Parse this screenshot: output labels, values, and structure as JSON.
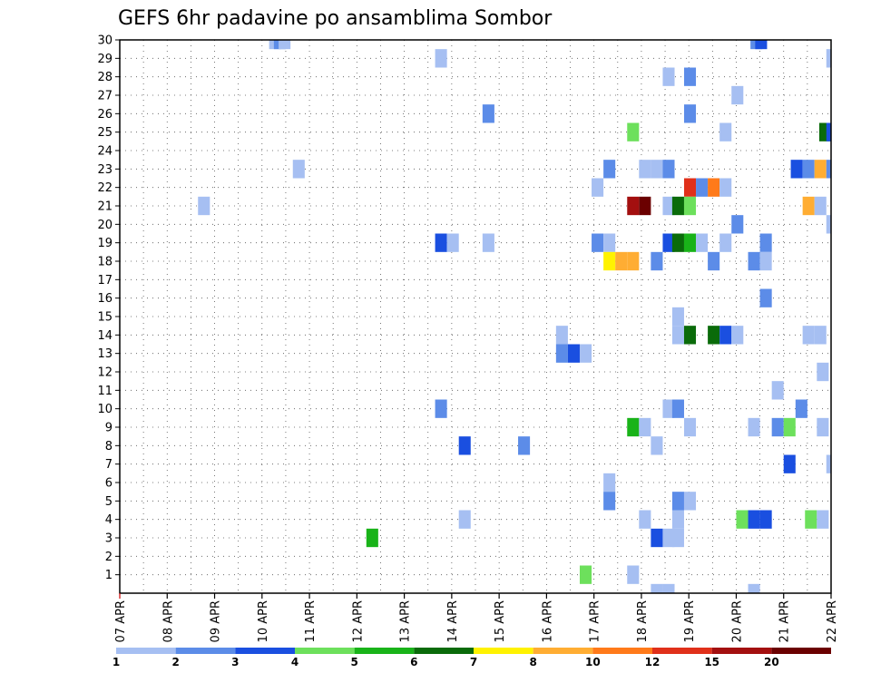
{
  "chart_data": {
    "type": "heatmap",
    "title": "GEFS 6hr padavine po ansamblima Sombor",
    "x_ticks": [
      "07 APR",
      "08 APR",
      "09 APR",
      "10 APR",
      "11 APR",
      "12 APR",
      "13 APR",
      "14 APR",
      "15 APR",
      "16 APR",
      "17 APR",
      "18 APR",
      "19 APR",
      "20 APR",
      "21 APR",
      "22 APR"
    ],
    "x_range": [
      0,
      60
    ],
    "y_ticks": [
      1,
      2,
      3,
      4,
      5,
      6,
      7,
      8,
      9,
      10,
      11,
      12,
      13,
      14,
      15,
      16,
      17,
      18,
      19,
      20,
      21,
      22,
      23,
      24,
      25,
      26,
      27,
      28,
      29,
      30
    ],
    "y_range": [
      0,
      30
    ],
    "grid": true,
    "legend": {
      "placement": "bottom",
      "labels": [
        "1",
        "2",
        "3",
        "4",
        "5",
        "6",
        "7",
        "8",
        "10",
        "12",
        "15",
        "20"
      ],
      "colors": [
        "#a6bff2",
        "#5c8ce8",
        "#1a4fe0",
        "#6de05c",
        "#19b319",
        "#0a6b0a",
        "#fff200",
        "#ffad33",
        "#ff7a1a",
        "#e0301a",
        "#a30f0f",
        "#6b0000"
      ]
    },
    "cells": [
      {
        "m": 30,
        "s": 12.6,
        "c": 1
      },
      {
        "m": 30,
        "s": 13.0,
        "c": 2
      },
      {
        "m": 30,
        "s": 13.4,
        "c": 1
      },
      {
        "m": 30,
        "s": 53.2,
        "c": 2
      },
      {
        "m": 30,
        "s": 53.6,
        "c": 3
      },
      {
        "m": 29,
        "s": 26.6,
        "c": 1
      },
      {
        "m": 29,
        "s": 59.6,
        "c": 1
      },
      {
        "m": 28,
        "s": 45.8,
        "c": 1
      },
      {
        "m": 28,
        "s": 47.6,
        "c": 2
      },
      {
        "m": 27,
        "s": 51.6,
        "c": 1
      },
      {
        "m": 26,
        "s": 30.6,
        "c": 2
      },
      {
        "m": 26,
        "s": 47.6,
        "c": 2
      },
      {
        "m": 25,
        "s": 42.8,
        "c": 4
      },
      {
        "m": 25,
        "s": 50.6,
        "c": 1
      },
      {
        "m": 25,
        "s": 59.0,
        "c": 6
      },
      {
        "m": 25,
        "s": 59.6,
        "c": 3
      },
      {
        "m": 23,
        "s": 14.6,
        "c": 1
      },
      {
        "m": 23,
        "s": 40.8,
        "c": 2
      },
      {
        "m": 23,
        "s": 43.8,
        "c": 1
      },
      {
        "m": 23,
        "s": 44.8,
        "c": 1
      },
      {
        "m": 23,
        "s": 45.8,
        "c": 2
      },
      {
        "m": 23,
        "s": 56.6,
        "c": 3
      },
      {
        "m": 23,
        "s": 57.6,
        "c": 2
      },
      {
        "m": 23,
        "s": 58.6,
        "c": 8
      },
      {
        "m": 23,
        "s": 59.6,
        "c": 2
      },
      {
        "m": 22,
        "s": 39.8,
        "c": 1
      },
      {
        "m": 22,
        "s": 47.6,
        "c": 10
      },
      {
        "m": 22,
        "s": 48.6,
        "c": 2
      },
      {
        "m": 22,
        "s": 49.6,
        "c": 9
      },
      {
        "m": 22,
        "s": 50.6,
        "c": 1
      },
      {
        "m": 21,
        "s": 6.6,
        "c": 1
      },
      {
        "m": 21,
        "s": 42.8,
        "c": 11
      },
      {
        "m": 21,
        "s": 43.8,
        "c": 12
      },
      {
        "m": 21,
        "s": 45.8,
        "c": 1
      },
      {
        "m": 21,
        "s": 46.6,
        "c": 6
      },
      {
        "m": 21,
        "s": 47.6,
        "c": 4
      },
      {
        "m": 21,
        "s": 57.6,
        "c": 8
      },
      {
        "m": 21,
        "s": 58.6,
        "c": 1
      },
      {
        "m": 20,
        "s": 51.6,
        "c": 2
      },
      {
        "m": 20,
        "s": 59.6,
        "c": 1
      },
      {
        "m": 19,
        "s": 26.6,
        "c": 3
      },
      {
        "m": 19,
        "s": 27.6,
        "c": 1
      },
      {
        "m": 19,
        "s": 30.6,
        "c": 1
      },
      {
        "m": 19,
        "s": 39.8,
        "c": 2
      },
      {
        "m": 19,
        "s": 40.8,
        "c": 1
      },
      {
        "m": 19,
        "s": 45.8,
        "c": 3
      },
      {
        "m": 19,
        "s": 46.6,
        "c": 6
      },
      {
        "m": 19,
        "s": 47.6,
        "c": 5
      },
      {
        "m": 19,
        "s": 48.6,
        "c": 1
      },
      {
        "m": 19,
        "s": 50.6,
        "c": 1
      },
      {
        "m": 19,
        "s": 54.0,
        "c": 2
      },
      {
        "m": 18,
        "s": 40.8,
        "c": 7
      },
      {
        "m": 18,
        "s": 41.8,
        "c": 8
      },
      {
        "m": 18,
        "s": 42.8,
        "c": 8
      },
      {
        "m": 18,
        "s": 44.8,
        "c": 2
      },
      {
        "m": 18,
        "s": 49.6,
        "c": 2
      },
      {
        "m": 18,
        "s": 53.0,
        "c": 2
      },
      {
        "m": 18,
        "s": 54.0,
        "c": 1
      },
      {
        "m": 16,
        "s": 54.0,
        "c": 2
      },
      {
        "m": 15,
        "s": 46.6,
        "c": 1
      },
      {
        "m": 14,
        "s": 46.6,
        "c": 1
      },
      {
        "m": 14,
        "s": 47.6,
        "c": 6
      },
      {
        "m": 14,
        "s": 49.6,
        "c": 6
      },
      {
        "m": 14,
        "s": 50.6,
        "c": 3
      },
      {
        "m": 14,
        "s": 51.6,
        "c": 1
      },
      {
        "m": 14,
        "s": 57.6,
        "c": 1
      },
      {
        "m": 14,
        "s": 58.6,
        "c": 1
      },
      {
        "m": 14,
        "s": 36.8,
        "c": 1
      },
      {
        "m": 13,
        "s": 36.8,
        "c": 2
      },
      {
        "m": 13,
        "s": 37.8,
        "c": 3
      },
      {
        "m": 13,
        "s": 38.8,
        "c": 1
      },
      {
        "m": 12,
        "s": 58.8,
        "c": 1
      },
      {
        "m": 11,
        "s": 55.0,
        "c": 1
      },
      {
        "m": 10,
        "s": 26.6,
        "c": 2
      },
      {
        "m": 10,
        "s": 45.8,
        "c": 1
      },
      {
        "m": 10,
        "s": 46.6,
        "c": 2
      },
      {
        "m": 10,
        "s": 57.0,
        "c": 2
      },
      {
        "m": 9,
        "s": 42.8,
        "c": 5
      },
      {
        "m": 9,
        "s": 43.8,
        "c": 1
      },
      {
        "m": 9,
        "s": 47.6,
        "c": 1
      },
      {
        "m": 9,
        "s": 53.0,
        "c": 1
      },
      {
        "m": 9,
        "s": 55.0,
        "c": 2
      },
      {
        "m": 9,
        "s": 56.0,
        "c": 4
      },
      {
        "m": 9,
        "s": 58.8,
        "c": 1
      },
      {
        "m": 8,
        "s": 28.6,
        "c": 3
      },
      {
        "m": 8,
        "s": 33.6,
        "c": 2
      },
      {
        "m": 8,
        "s": 44.8,
        "c": 1
      },
      {
        "m": 7,
        "s": 56.0,
        "c": 3
      },
      {
        "m": 7,
        "s": 59.6,
        "c": 1
      },
      {
        "m": 6,
        "s": 40.8,
        "c": 1
      },
      {
        "m": 5,
        "s": 40.8,
        "c": 2
      },
      {
        "m": 5,
        "s": 46.6,
        "c": 2
      },
      {
        "m": 5,
        "s": 47.6,
        "c": 1
      },
      {
        "m": 4,
        "s": 28.6,
        "c": 1
      },
      {
        "m": 4,
        "s": 43.8,
        "c": 1
      },
      {
        "m": 4,
        "s": 46.6,
        "c": 1
      },
      {
        "m": 4,
        "s": 52.0,
        "c": 4
      },
      {
        "m": 4,
        "s": 53.0,
        "c": 3
      },
      {
        "m": 4,
        "s": 54.0,
        "c": 3
      },
      {
        "m": 4,
        "s": 57.8,
        "c": 4
      },
      {
        "m": 4,
        "s": 58.8,
        "c": 1
      },
      {
        "m": 3,
        "s": 20.8,
        "c": 5
      },
      {
        "m": 3,
        "s": 44.8,
        "c": 3
      },
      {
        "m": 3,
        "s": 45.8,
        "c": 1
      },
      {
        "m": 3,
        "s": 46.6,
        "c": 1
      },
      {
        "m": 1,
        "s": 38.8,
        "c": 4
      },
      {
        "m": 1,
        "s": 42.8,
        "c": 1
      },
      {
        "m": 0,
        "s": 44.8,
        "c": 1
      },
      {
        "m": 0,
        "s": 45.8,
        "c": 1
      },
      {
        "m": 0,
        "s": 53.0,
        "c": 1
      }
    ]
  }
}
